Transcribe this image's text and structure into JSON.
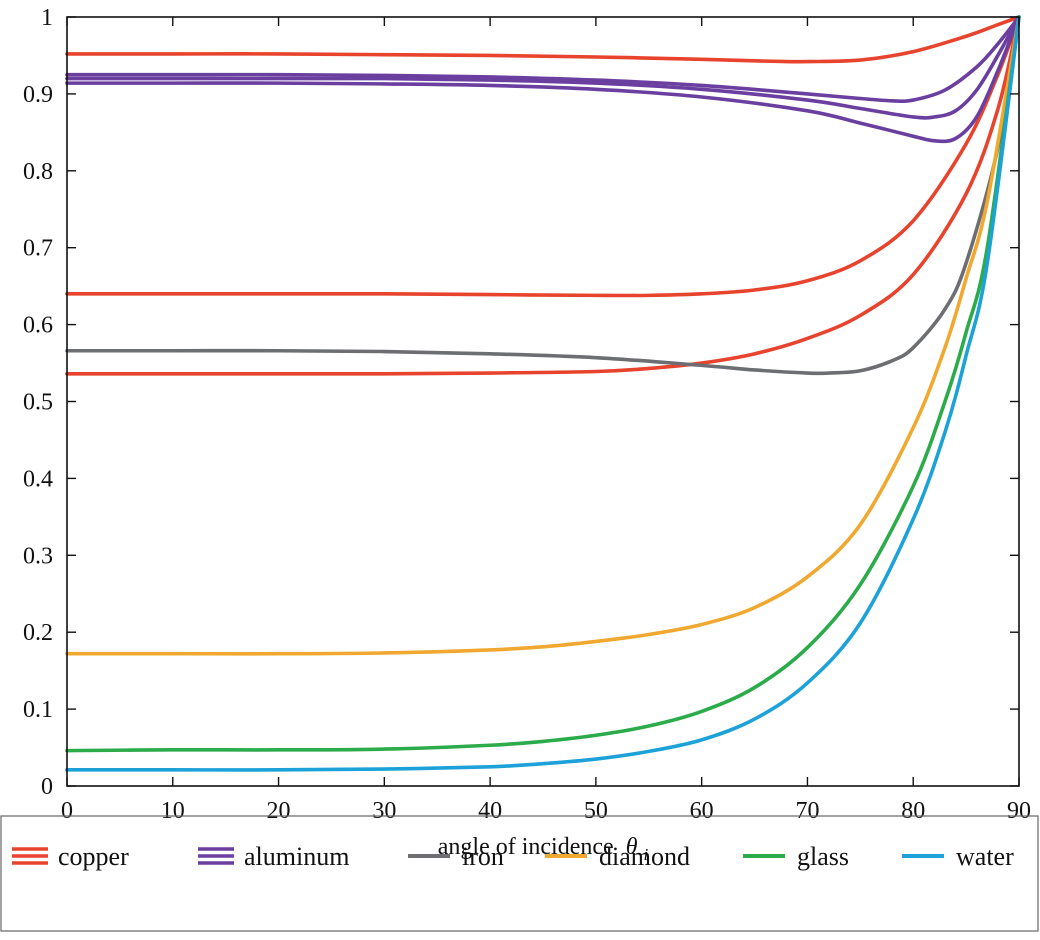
{
  "chart_data": {
    "type": "line",
    "title": "",
    "xlabel": "angle of incidence",
    "xlabel_symbol": "θ",
    "xlabel_subscript": "i",
    "ylabel": "",
    "xlim": [
      0,
      90
    ],
    "ylim": [
      0,
      1
    ],
    "x_ticks": [
      "0",
      "10",
      "20",
      "30",
      "40",
      "50",
      "60",
      "70",
      "80",
      "90"
    ],
    "y_ticks": [
      "0",
      "0.1",
      "0.2",
      "0.3",
      "0.4",
      "0.5",
      "0.6",
      "0.7",
      "0.8",
      "0.9",
      "1"
    ],
    "grid": false,
    "legend_position": "bottom",
    "series": [
      {
        "name": "copper",
        "color": "#e8432d",
        "legend_style": "triple",
        "x": [
          0,
          10,
          20,
          30,
          40,
          50,
          60,
          65,
          68,
          70,
          75,
          80,
          85,
          88,
          90
        ],
        "y": [
          0.952,
          0.952,
          0.952,
          0.951,
          0.95,
          0.948,
          0.945,
          0.943,
          0.942,
          0.942,
          0.944,
          0.955,
          0.975,
          0.99,
          1.0
        ]
      },
      {
        "name": "",
        "color": "#e8432d",
        "x": [
          0,
          10,
          20,
          30,
          40,
          50,
          55,
          60,
          65,
          70,
          75,
          80,
          85,
          88,
          90
        ],
        "y": [
          0.64,
          0.64,
          0.64,
          0.64,
          0.639,
          0.638,
          0.638,
          0.64,
          0.645,
          0.657,
          0.683,
          0.735,
          0.835,
          0.925,
          1.0
        ]
      },
      {
        "name": "",
        "color": "#e8432d",
        "x": [
          0,
          10,
          20,
          30,
          40,
          50,
          55,
          60,
          65,
          70,
          75,
          80,
          85,
          88,
          90
        ],
        "y": [
          0.536,
          0.536,
          0.536,
          0.536,
          0.537,
          0.539,
          0.543,
          0.55,
          0.562,
          0.582,
          0.612,
          0.665,
          0.77,
          0.88,
          1.0
        ]
      },
      {
        "name": "aluminum",
        "color": "#6b3fa0",
        "legend_style": "triple",
        "x": [
          0,
          10,
          20,
          30,
          40,
          50,
          60,
          70,
          75,
          78,
          80,
          83,
          86,
          88,
          90
        ],
        "y": [
          0.925,
          0.925,
          0.925,
          0.924,
          0.922,
          0.918,
          0.911,
          0.9,
          0.894,
          0.891,
          0.892,
          0.905,
          0.935,
          0.965,
          1.0
        ]
      },
      {
        "name": "",
        "color": "#6b3fa0",
        "x": [
          0,
          10,
          20,
          30,
          40,
          50,
          60,
          70,
          75,
          80,
          82,
          84,
          86,
          88,
          90
        ],
        "y": [
          0.92,
          0.92,
          0.92,
          0.92,
          0.918,
          0.914,
          0.906,
          0.892,
          0.881,
          0.87,
          0.87,
          0.878,
          0.905,
          0.95,
          1.0
        ]
      },
      {
        "name": "",
        "color": "#6b3fa0",
        "x": [
          0,
          10,
          20,
          30,
          40,
          50,
          60,
          70,
          75,
          80,
          82,
          84,
          86,
          88,
          90
        ],
        "y": [
          0.914,
          0.914,
          0.914,
          0.913,
          0.911,
          0.906,
          0.896,
          0.878,
          0.862,
          0.845,
          0.839,
          0.842,
          0.87,
          0.93,
          1.0
        ]
      },
      {
        "name": "iron",
        "color": "#6d6e71",
        "legend_style": "single",
        "x": [
          0,
          10,
          20,
          30,
          40,
          50,
          60,
          65,
          70,
          72,
          75,
          78,
          80,
          83,
          85,
          88,
          90
        ],
        "y": [
          0.566,
          0.566,
          0.566,
          0.565,
          0.562,
          0.557,
          0.547,
          0.541,
          0.537,
          0.537,
          0.54,
          0.553,
          0.57,
          0.62,
          0.68,
          0.83,
          1.0
        ]
      },
      {
        "name": "diamond",
        "color": "#f0a830",
        "legend_style": "single",
        "x": [
          0,
          10,
          20,
          30,
          40,
          45,
          50,
          55,
          60,
          65,
          70,
          75,
          80,
          83,
          85,
          87,
          90
        ],
        "y": [
          0.172,
          0.172,
          0.172,
          0.173,
          0.177,
          0.181,
          0.188,
          0.197,
          0.21,
          0.232,
          0.272,
          0.34,
          0.466,
          0.57,
          0.66,
          0.76,
          1.0
        ]
      },
      {
        "name": "glass",
        "color": "#2bab4a",
        "legend_style": "single",
        "x": [
          0,
          10,
          20,
          30,
          40,
          45,
          50,
          55,
          60,
          65,
          70,
          75,
          80,
          83,
          85,
          87,
          90
        ],
        "y": [
          0.046,
          0.047,
          0.047,
          0.048,
          0.053,
          0.058,
          0.066,
          0.078,
          0.097,
          0.128,
          0.18,
          0.262,
          0.39,
          0.5,
          0.59,
          0.7,
          1.0
        ]
      },
      {
        "name": "water",
        "color": "#1ca2d8",
        "legend_style": "single",
        "x": [
          0,
          10,
          20,
          30,
          40,
          45,
          50,
          55,
          60,
          65,
          70,
          75,
          80,
          83,
          85,
          87,
          90
        ],
        "y": [
          0.021,
          0.021,
          0.021,
          0.022,
          0.025,
          0.029,
          0.035,
          0.045,
          0.06,
          0.087,
          0.134,
          0.212,
          0.347,
          0.46,
          0.56,
          0.68,
          1.0
        ]
      }
    ]
  }
}
